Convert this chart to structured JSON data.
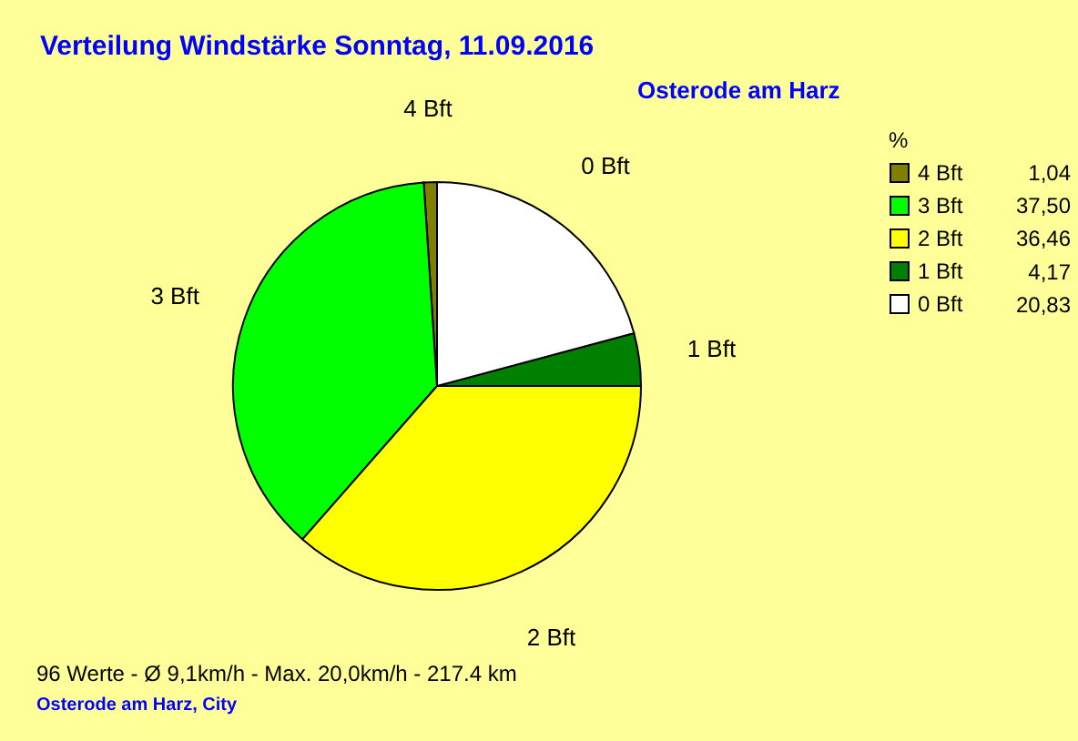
{
  "chart_data": {
    "type": "pie",
    "title": "Verteilung Windstärke  Sonntag, 11.09.2016",
    "subtitle": "Osterode am Harz",
    "legend_title": "%",
    "legend": "top right",
    "categories": [
      "4 Bft",
      "3 Bft",
      "2 Bft",
      "1 Bft",
      "0 Bft"
    ],
    "values": [
      1.04,
      37.5,
      36.46,
      4.17,
      20.83
    ],
    "value_labels": [
      "1,04",
      "37,50",
      "36,46",
      "4,17",
      "20,83"
    ],
    "colors": [
      "#808000",
      "#00ff00",
      "#ffff00",
      "#008000",
      "#ffffff"
    ],
    "annotations": [
      "96 Werte   -   Ø 9,1km/h  -  Max. 20,0km/h   -   217.4 km",
      "Osterode am Harz, City"
    ]
  }
}
